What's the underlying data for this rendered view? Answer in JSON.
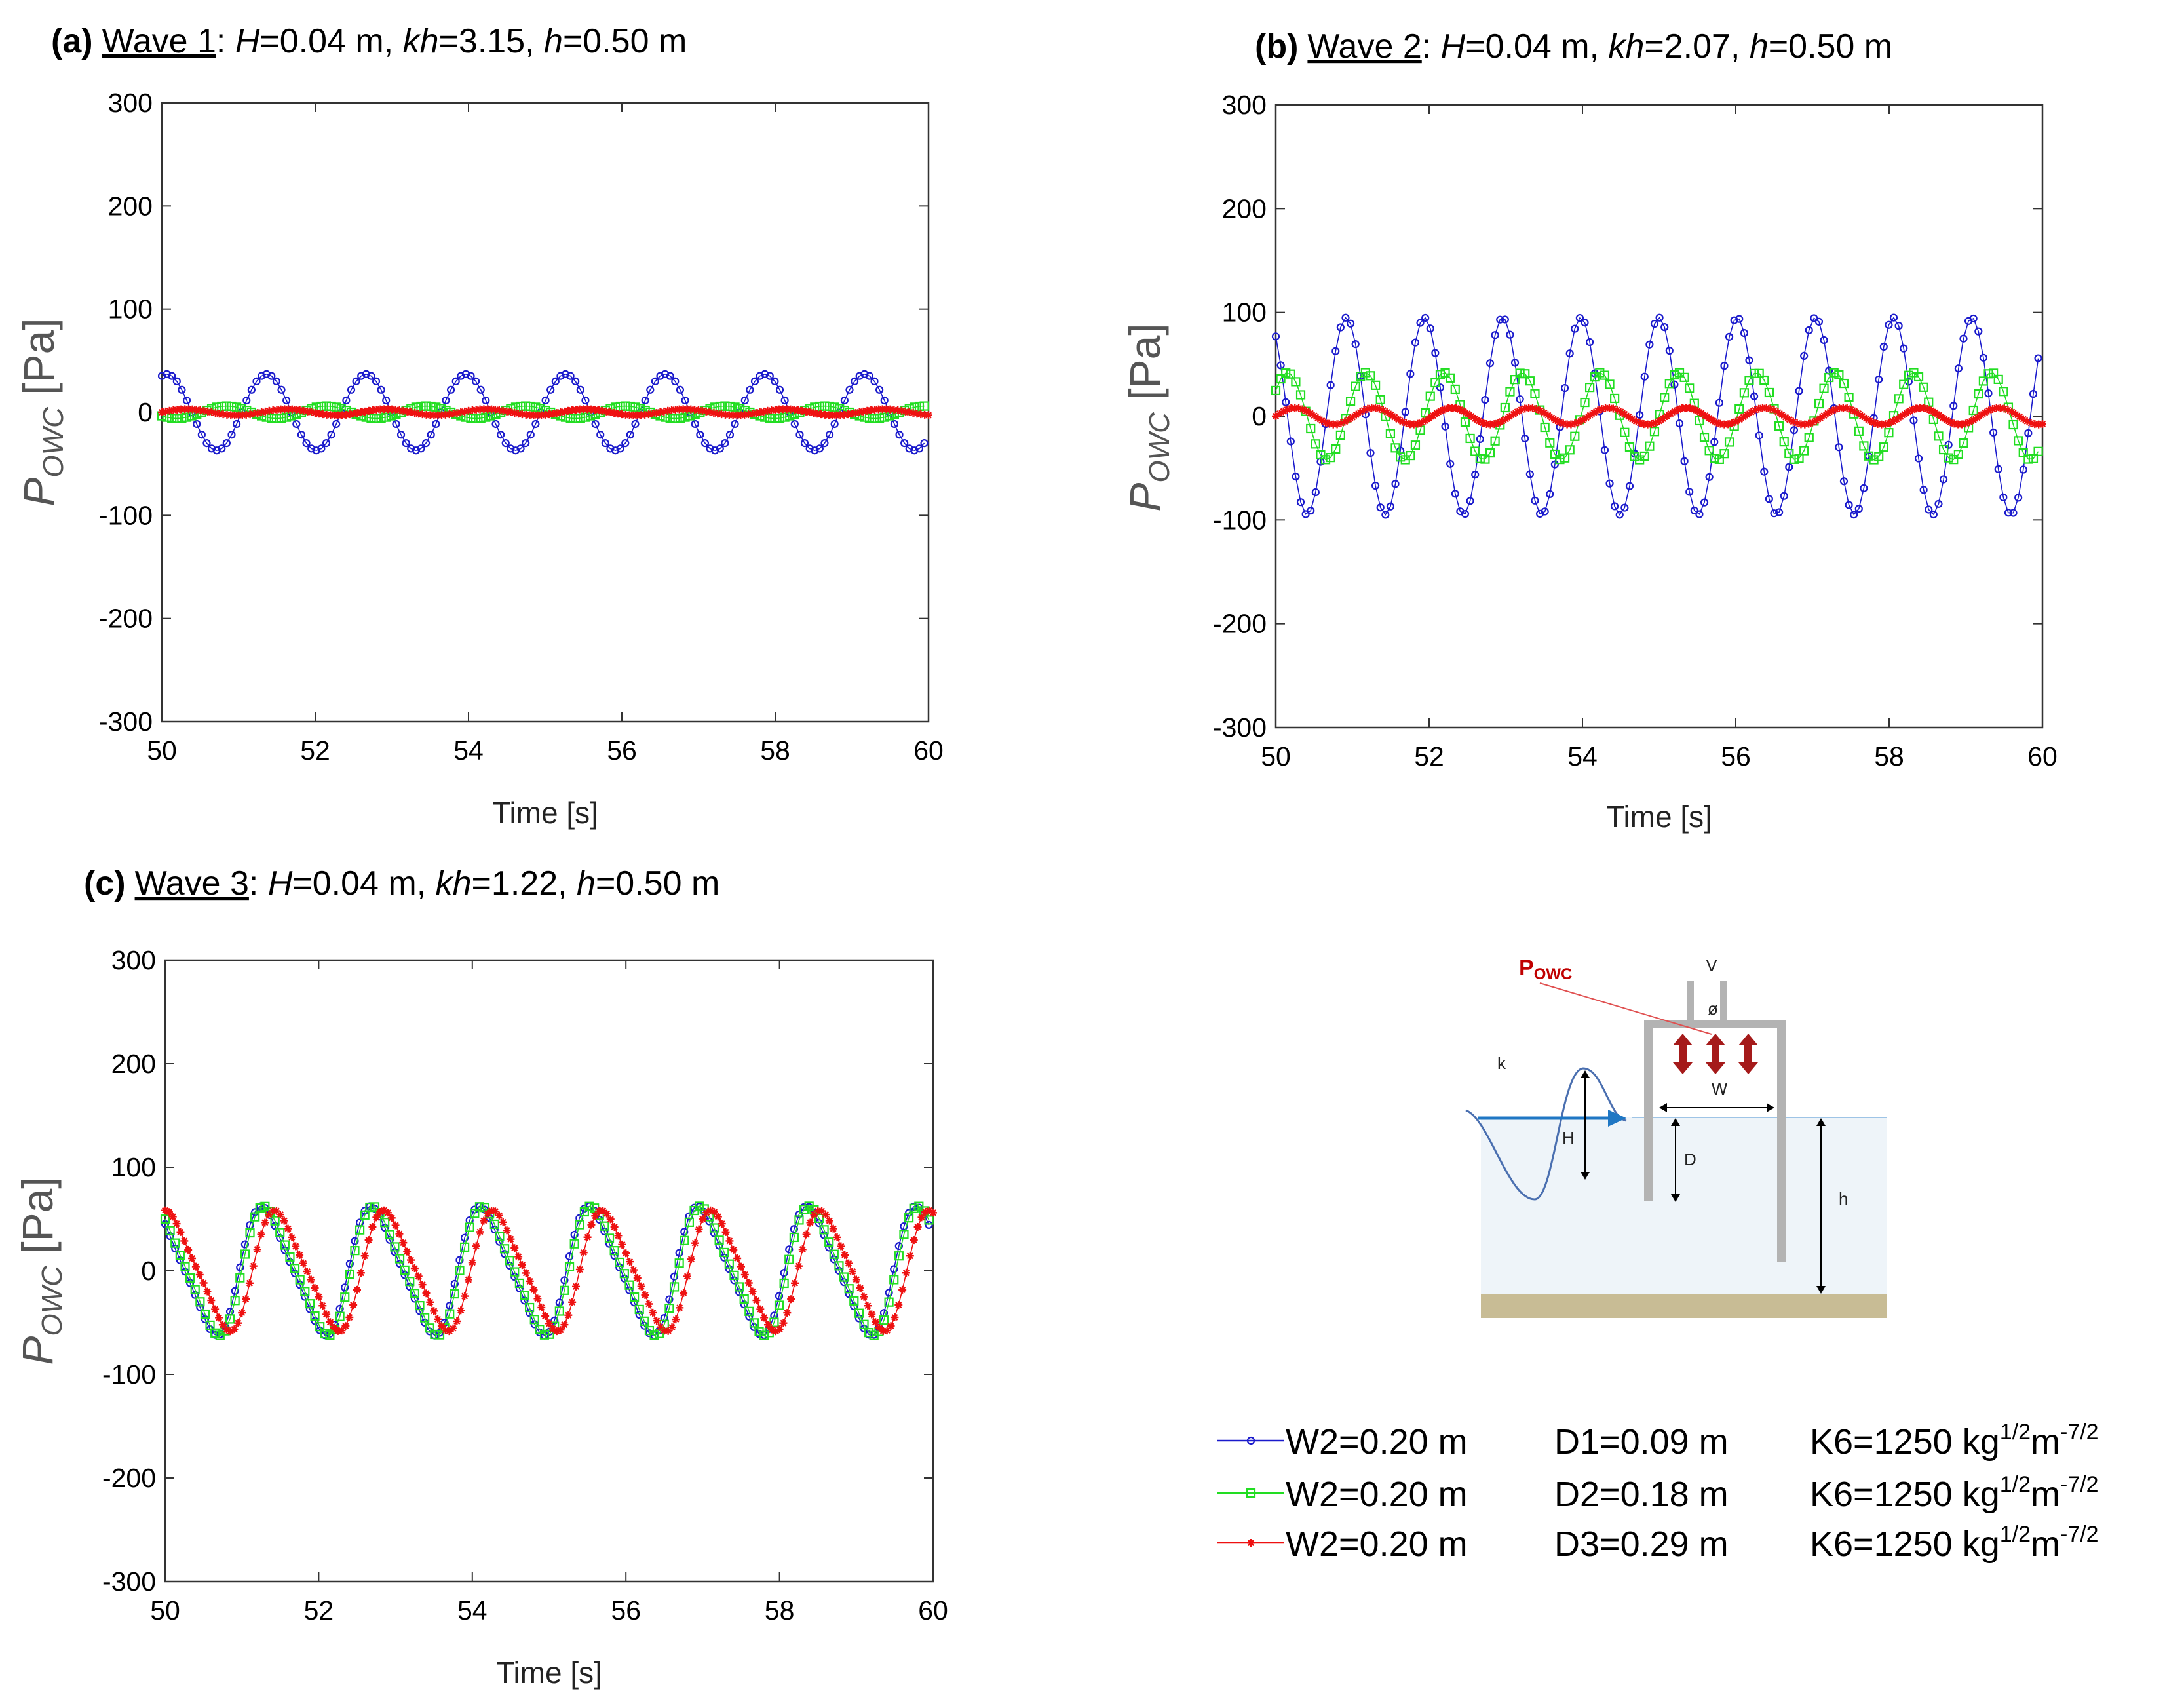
{
  "chart_data": [
    {
      "id": "a",
      "type": "line",
      "panel_label": "(a)",
      "wave_label": "Wave 1",
      "params": [
        {
          "sym": "H",
          "val": "=0.04 m, "
        },
        {
          "sym": "kh",
          "val": "=3.15, "
        },
        {
          "sym": "h",
          "val": "=0.50 m"
        }
      ],
      "xlabel": "Time [s]",
      "ylabel_main": "P",
      "ylabel_sub": "OWC",
      "ylabel_unit": " [Pa]",
      "xlim": [
        50,
        60
      ],
      "ylim": [
        -300,
        300
      ],
      "xticks": [
        50,
        52,
        54,
        56,
        58,
        60
      ],
      "yticks": [
        -300,
        -200,
        -100,
        0,
        100,
        200,
        300
      ],
      "period": 1.3,
      "series": [
        {
          "name": "W2=0.20 m D1=0.09 m",
          "marker": "circle",
          "color": "#1a1acc",
          "amplitude": 37,
          "phase": 0.2
        },
        {
          "name": "W2=0.20 m D2=0.18 m",
          "marker": "square",
          "color": "#22dd22",
          "amplitude": 6,
          "phase": 0.6
        },
        {
          "name": "W2=0.20 m D3=0.29 m",
          "marker": "star",
          "color": "#ee1111",
          "amplitude": 3,
          "phase": 1.0
        }
      ]
    },
    {
      "id": "b",
      "type": "line",
      "panel_label": "(b)",
      "wave_label": "Wave 2",
      "params": [
        {
          "sym": "H",
          "val": "=0.04 m, "
        },
        {
          "sym": "kh",
          "val": "=2.07, "
        },
        {
          "sym": "h",
          "val": "=0.50 m"
        }
      ],
      "xlabel": "Time [s]",
      "ylabel_main": "P",
      "ylabel_sub": "OWC",
      "ylabel_unit": " [Pa]",
      "xlim": [
        50,
        60
      ],
      "ylim": [
        -300,
        300
      ],
      "xticks": [
        50,
        52,
        54,
        56,
        58,
        60
      ],
      "yticks": [
        -300,
        -200,
        -100,
        0,
        100,
        200,
        300
      ],
      "period": 1.02,
      "series": [
        {
          "name": "W2=0.20 m D1=0.09 m",
          "marker": "circle",
          "color": "#1a1acc",
          "amplitude": 95,
          "phase": 0.35
        },
        {
          "name": "W2=0.20 m D2=0.18 m",
          "marker": "square",
          "color": "#22dd22",
          "amplitude": 42,
          "phase": 0.1
        },
        {
          "name": "W2=0.20 m D3=0.29 m",
          "marker": "star",
          "color": "#ee1111",
          "amplitude": 8,
          "phase": 0.0
        }
      ]
    },
    {
      "id": "c",
      "type": "line",
      "panel_label": "(c)",
      "wave_label": "Wave 3",
      "params": [
        {
          "sym": "H",
          "val": "=0.04 m, "
        },
        {
          "sym": "kh",
          "val": "=1.22, "
        },
        {
          "sym": "h",
          "val": "=0.50 m"
        }
      ],
      "xlabel": "Time [s]",
      "ylabel_main": "P",
      "ylabel_sub": "OWC",
      "ylabel_unit": " [Pa]",
      "xlim": [
        50,
        60
      ],
      "ylim": [
        -300,
        300
      ],
      "xticks": [
        50,
        52,
        54,
        56,
        58,
        60
      ],
      "yticks": [
        -300,
        -200,
        -100,
        0,
        100,
        200,
        300
      ],
      "period": 1.42,
      "series": [
        {
          "name": "W2=0.20 m D1=0.09 m",
          "marker": "circle",
          "color": "#1a1acc",
          "amplitude": 62,
          "phase": 0.32
        },
        {
          "name": "W2=0.20 m D2=0.18 m",
          "marker": "square",
          "color": "#22dd22",
          "amplitude": 62,
          "phase": 0.3
        },
        {
          "name": "W2=0.20 m D3=0.29 m",
          "marker": "star",
          "color": "#ee1111",
          "amplitude": 58,
          "phase": 0.2
        }
      ]
    }
  ],
  "legend": [
    {
      "w": "W2=0.20 m",
      "d": "D1=0.09 m",
      "k": "K6=1250 kg",
      "e1": "1/2",
      "m": "m",
      "e2": "-7/2",
      "marker": "circle",
      "color": "#1a1acc"
    },
    {
      "w": "W2=0.20 m",
      "d": "D2=0.18 m",
      "k": "K6=1250 kg",
      "e1": "1/2",
      "m": "m",
      "e2": "-7/2",
      "marker": "square",
      "color": "#22dd22"
    },
    {
      "w": "W2=0.20 m",
      "d": "D3=0.29 m",
      "k": "K6=1250 kg",
      "e1": "1/2",
      "m": "m",
      "e2": "-7/2",
      "marker": "star",
      "color": "#ee1111"
    }
  ],
  "diagram": {
    "powc_main": "P",
    "powc_sub": "OWC",
    "V": "V",
    "phi": "ø",
    "k": "k",
    "W": "W",
    "H": "H",
    "D": "D",
    "h": "h",
    "colors": {
      "water": "#eef4f9",
      "seabed": "#c8bc95",
      "wall": "#b3b3b3",
      "arrow": "#a51a1a",
      "wave": "#4a6fb0",
      "incident": "#1f77c4"
    }
  }
}
